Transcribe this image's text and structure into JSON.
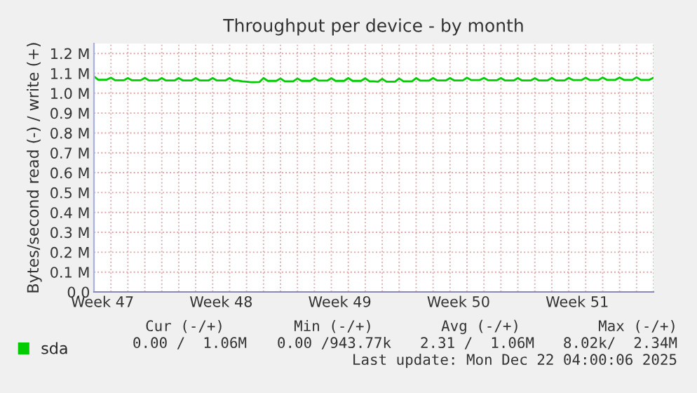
{
  "chart_data": {
    "type": "line",
    "title": "Throughput per device - by month",
    "ylabel": "Bytes/second read (-) / write (+)",
    "categories": [
      null,
      null,
      "Week 47",
      null,
      null,
      null,
      null,
      null,
      null,
      null,
      null,
      null,
      null,
      null,
      null,
      null,
      null,
      null,
      null,
      null,
      null,
      null,
      null,
      null,
      null,
      null,
      null,
      null,
      null,
      null,
      "Week 48",
      null,
      null,
      null,
      null,
      null,
      null,
      null,
      null,
      null,
      null,
      null,
      null,
      null,
      null,
      null,
      null,
      null,
      null,
      null,
      null,
      null,
      null,
      null,
      null,
      null,
      null,
      null,
      "Week 49",
      null,
      null,
      null,
      null,
      null,
      null,
      null,
      null,
      null,
      null,
      null,
      null,
      null,
      null,
      null,
      null,
      null,
      null,
      null,
      null,
      null,
      null,
      null,
      null,
      null,
      null,
      null,
      "Week 50",
      null,
      null,
      null,
      null,
      null,
      null,
      null,
      null,
      null,
      null,
      null,
      null,
      null,
      null,
      null,
      null,
      null,
      null,
      null,
      null,
      null,
      null,
      null,
      null,
      null,
      null,
      null,
      "Week 51",
      null,
      null,
      null,
      null,
      null,
      null,
      null,
      null,
      null,
      null,
      null,
      null,
      null,
      null,
      null,
      null,
      null,
      null
    ],
    "ylim": [
      0,
      1250000
    ],
    "yticks": [
      {
        "value": 0,
        "label": "0.0"
      },
      {
        "value": 100000,
        "label": "0.1 M"
      },
      {
        "value": 200000,
        "label": "0.2 M"
      },
      {
        "value": 300000,
        "label": "0.3 M"
      },
      {
        "value": 400000,
        "label": "0.4 M"
      },
      {
        "value": 500000,
        "label": "0.5 M"
      },
      {
        "value": 600000,
        "label": "0.6 M"
      },
      {
        "value": 700000,
        "label": "0.7 M"
      },
      {
        "value": 800000,
        "label": "0.8 M"
      },
      {
        "value": 900000,
        "label": "0.9 M"
      },
      {
        "value": 1000000,
        "label": "1.0 M"
      },
      {
        "value": 1100000,
        "label": "1.1 M"
      },
      {
        "value": 1200000,
        "label": "1.2 M"
      }
    ],
    "grid": true,
    "legend": "bottom left",
    "series": [
      {
        "name": "sda",
        "color": "#00cc00",
        "values": [
          1085000,
          1068000,
          1068000,
          1068000,
          1078000,
          1065000,
          1065000,
          1065000,
          1076000,
          1065000,
          1065000,
          1065000,
          1077000,
          1064000,
          1064000,
          1064000,
          1076000,
          1064000,
          1064000,
          1064000,
          1076000,
          1064000,
          1064000,
          1064000,
          1076000,
          1064000,
          1064000,
          1064000,
          1076000,
          1064000,
          1064000,
          1064000,
          1076000,
          1063000,
          1063000,
          1060000,
          1058000,
          1055000,
          1055000,
          1056000,
          1076000,
          1062000,
          1062000,
          1062000,
          1074000,
          1060000,
          1060000,
          1060000,
          1074000,
          1062000,
          1062000,
          1062000,
          1076000,
          1063000,
          1063000,
          1063000,
          1075000,
          1062000,
          1062000,
          1062000,
          1076000,
          1062000,
          1062000,
          1062000,
          1075000,
          1060000,
          1060000,
          1058000,
          1072000,
          1058000,
          1058000,
          1058000,
          1074000,
          1060000,
          1060000,
          1060000,
          1076000,
          1063000,
          1063000,
          1063000,
          1076000,
          1064000,
          1064000,
          1064000,
          1076000,
          1064000,
          1064000,
          1064000,
          1078000,
          1066000,
          1066000,
          1066000,
          1077000,
          1065000,
          1065000,
          1065000,
          1076000,
          1064000,
          1064000,
          1064000,
          1076000,
          1064000,
          1064000,
          1064000,
          1075000,
          1064000,
          1064000,
          1064000,
          1077000,
          1064000,
          1064000,
          1064000,
          1077000,
          1066000,
          1066000,
          1066000,
          1078000,
          1066000,
          1066000,
          1066000,
          1079000,
          1067000,
          1067000,
          1067000,
          1079000,
          1067000,
          1067000,
          1067000,
          1080000,
          1067000,
          1067000,
          1067000,
          1078000
        ]
      }
    ],
    "annotations": [
      "Cur (-/+)",
      "Min (-/+)",
      "Avg (-/+)",
      "Max (-/+)",
      "0.00 /  1.06M",
      "0.00 /943.77k",
      "2.31 /  1.06M",
      "8.02k/  2.34M",
      "Last update: Mon Dec 22 04:00:06 2025"
    ]
  }
}
